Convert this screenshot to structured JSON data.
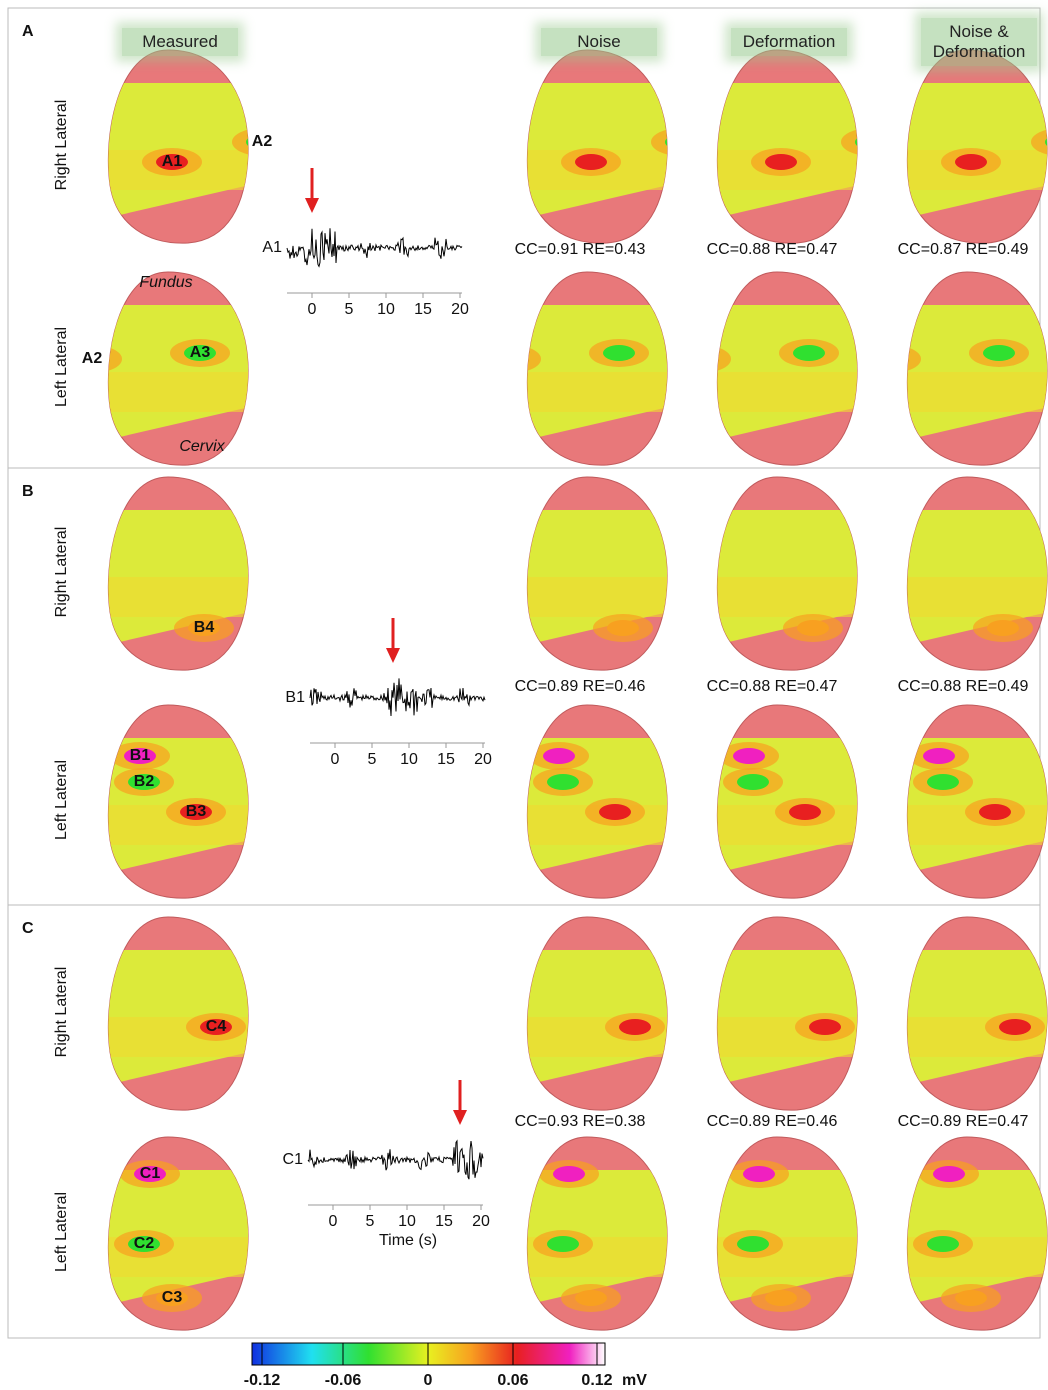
{
  "columns": [
    "Measured",
    "Noise",
    "Deformation",
    "Noise & Deformation"
  ],
  "row_labels": [
    "Right Lateral",
    "Left Lateral"
  ],
  "panels": [
    {
      "label": "A",
      "right_markers": [
        "A1",
        "A2"
      ],
      "left_markers": [
        "A2",
        "A3"
      ],
      "anatomy": [
        "Fundus",
        "Cervix"
      ],
      "trace_label": "A1",
      "trace_ticks": [
        "0",
        "5",
        "10",
        "15",
        "20"
      ],
      "metrics": [
        "CC=0.91  RE=0.43",
        "CC=0.88  RE=0.47",
        "CC=0.87  RE=0.49"
      ]
    },
    {
      "label": "B",
      "right_markers": [
        "B4"
      ],
      "left_markers": [
        "B1",
        "B2",
        "B3"
      ],
      "trace_label": "B1",
      "trace_ticks": [
        "0",
        "5",
        "10",
        "15",
        "20"
      ],
      "metrics": [
        "CC=0.89  RE=0.46",
        "CC=0.88  RE=0.47",
        "CC=0.88  RE=0.49"
      ]
    },
    {
      "label": "C",
      "right_markers": [
        "C4"
      ],
      "left_markers": [
        "C1",
        "C2",
        "C3"
      ],
      "trace_label": "C1",
      "trace_ticks": [
        "0",
        "5",
        "10",
        "15",
        "20"
      ],
      "trace_xlabel": "Time (s)",
      "metrics": [
        "CC=0.93  RE=0.38",
        "CC=0.89  RE=0.46",
        "CC=0.89  RE=0.47"
      ]
    }
  ],
  "colorbar": {
    "ticks": [
      "-0.12",
      "-0.06",
      "0",
      "0.06",
      "0.12"
    ],
    "unit": "mV"
  }
}
